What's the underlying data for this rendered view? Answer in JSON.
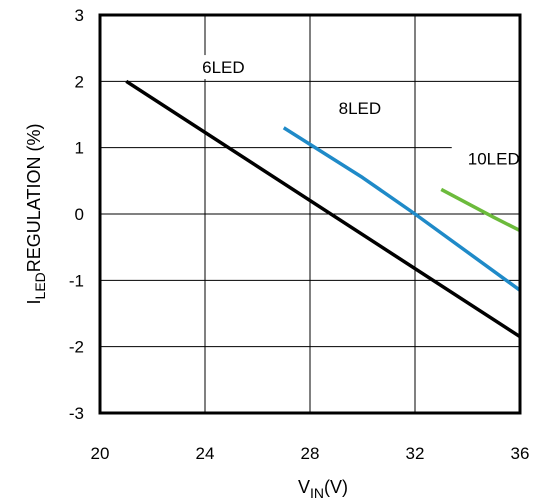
{
  "chart_data": {
    "type": "line",
    "xlabel": {
      "main": "V",
      "sub": "IN",
      "suffix": "(V)"
    },
    "ylabel": {
      "main": "I",
      "sub": "LED",
      "suffix": "REGULATION (%)"
    },
    "xlim": [
      20,
      36
    ],
    "ylim": [
      -3,
      3
    ],
    "xticks": [
      20,
      24,
      28,
      32,
      36
    ],
    "yticks": [
      3,
      2,
      1,
      0,
      -1,
      -2,
      -3
    ],
    "grid": true,
    "series": [
      {
        "name": "6LED",
        "color": "#000000",
        "x": [
          21,
          36
        ],
        "y": [
          2.0,
          -1.85
        ]
      },
      {
        "name": "8LED",
        "color": "#1f8ac8",
        "x": [
          27,
          30,
          32,
          36
        ],
        "y": [
          1.3,
          0.55,
          0.0,
          -1.15
        ]
      },
      {
        "name": "10LED",
        "color": "#6cbb3c",
        "x": [
          33,
          35,
          36
        ],
        "y": [
          0.37,
          -0.05,
          -0.25
        ]
      }
    ]
  }
}
